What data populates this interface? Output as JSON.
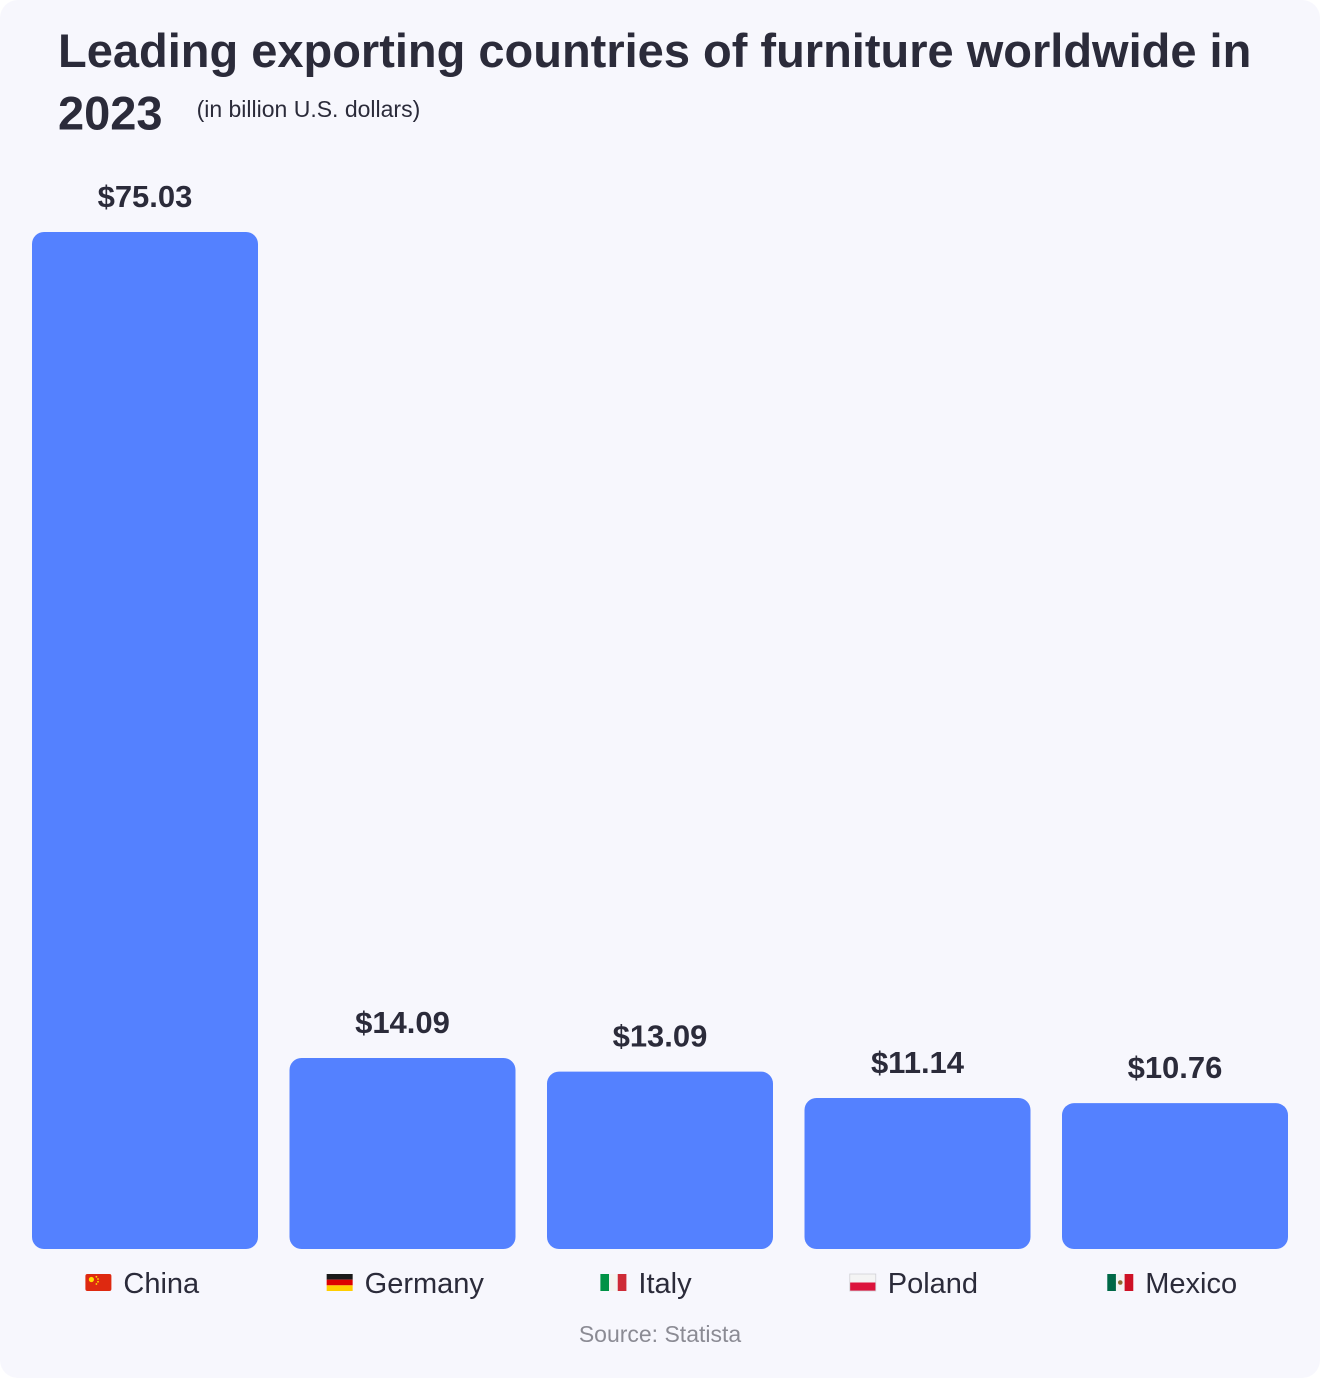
{
  "chart_data": {
    "type": "bar",
    "title": "Leading exporting countries of furniture worldwide in 2023",
    "subtitle": "(in billion U.S. dollars)",
    "categories": [
      "China",
      "Germany",
      "Italy",
      "Poland",
      "Mexico"
    ],
    "flag_icons": [
      "china-flag-icon",
      "germany-flag-icon",
      "italy-flag-icon",
      "poland-flag-icon",
      "mexico-flag-icon"
    ],
    "values": [
      75.03,
      14.09,
      13.09,
      11.14,
      10.76
    ],
    "value_labels": [
      "$75.03",
      "$14.09",
      "$13.09",
      "$11.14",
      "$10.76"
    ],
    "xlabel": "",
    "ylabel": "",
    "ylim": [
      0,
      75.03
    ],
    "grid": false,
    "bar_color": "#5481ff"
  },
  "footer": {
    "source": "Source: Statista"
  }
}
